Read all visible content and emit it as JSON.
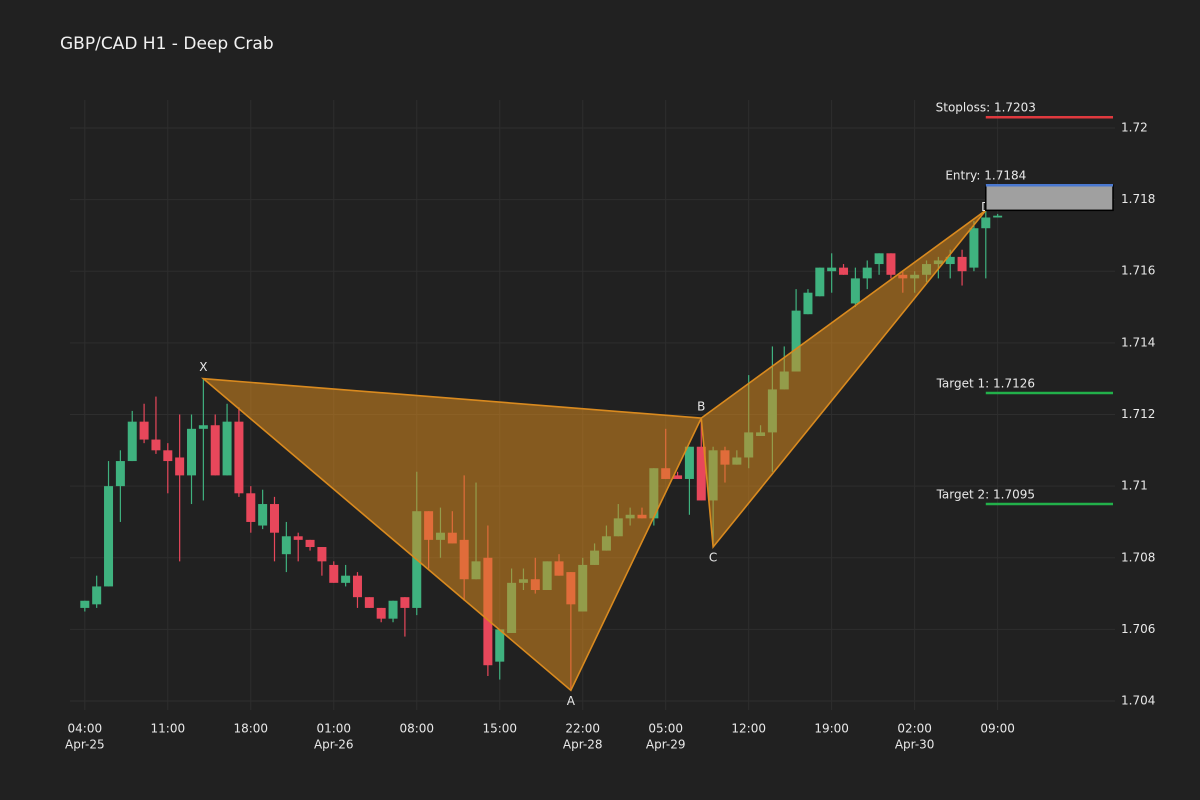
{
  "chart_data": {
    "type": "candlestick",
    "title": "GBP/CAD H1 - Deep Crab",
    "xlim": [
      -1.25,
      86.9
    ],
    "ylim": [
      1.70375,
      1.72078
    ],
    "grid": true,
    "xticks": [
      {
        "value": 0,
        "label": "04:00",
        "date": "Apr-25"
      },
      {
        "value": 7,
        "label": "11:00"
      },
      {
        "value": 14,
        "label": "18:00"
      },
      {
        "value": 21,
        "label": "01:00",
        "date": "Apr-26"
      },
      {
        "value": 28,
        "label": "08:00"
      },
      {
        "value": 35,
        "label": "15:00"
      },
      {
        "value": 42,
        "label": "22:00",
        "date": "Apr-28"
      },
      {
        "value": 49,
        "label": "05:00",
        "date": "Apr-29"
      },
      {
        "value": 56,
        "label": "12:00"
      },
      {
        "value": 63,
        "label": "19:00"
      },
      {
        "value": 70,
        "label": "02:00",
        "date": "Apr-30"
      },
      {
        "value": 77,
        "label": "09:00"
      }
    ],
    "yticks": [
      1.704,
      1.706,
      1.708,
      1.71,
      1.712,
      1.714,
      1.716,
      1.718,
      1.72
    ],
    "colors": {
      "up": "#3fb27f",
      "down": "#e8475b"
    },
    "candles": {
      "open": [
        1.7066,
        1.7067,
        1.7072,
        1.71,
        1.7107,
        1.7118,
        1.7113,
        1.711,
        1.7108,
        1.7103,
        1.7116,
        1.7117,
        1.7103,
        1.7118,
        1.7098,
        1.7089,
        1.7095,
        1.7081,
        1.7086,
        1.7085,
        1.7083,
        1.7078,
        1.7073,
        1.7075,
        1.7069,
        1.7066,
        1.7063,
        1.7069,
        1.7066,
        1.7093,
        1.7085,
        1.7087,
        1.7085,
        1.7074,
        1.708,
        1.7051,
        1.7059,
        1.7073,
        1.7074,
        1.7071,
        1.7079,
        1.7076,
        1.7065,
        1.7078,
        1.7082,
        1.7086,
        1.7091,
        1.7092,
        1.7091,
        1.7105,
        1.7103,
        1.7102,
        1.7111,
        1.7096,
        1.711,
        1.7106,
        1.7108,
        1.7114,
        1.7115,
        1.7127,
        1.7132,
        1.7148,
        1.7153,
        1.716,
        1.7161,
        1.7151,
        1.7158,
        1.7162,
        1.7165,
        1.7159,
        1.7158,
        1.7159,
        1.7162,
        1.7162,
        1.7164,
        1.7161,
        1.7172,
        1.7175
      ],
      "high": [
        1.7068,
        1.7075,
        1.7107,
        1.711,
        1.7121,
        1.7123,
        1.7125,
        1.7112,
        1.712,
        1.712,
        1.713,
        1.712,
        1.7123,
        1.7122,
        1.71,
        1.7099,
        1.7097,
        1.709,
        1.7087,
        1.7085,
        1.7083,
        1.7079,
        1.7078,
        1.7076,
        1.7069,
        1.7066,
        1.7068,
        1.7069,
        1.7104,
        1.7093,
        1.7094,
        1.7093,
        1.7103,
        1.7101,
        1.7089,
        1.706,
        1.7077,
        1.7077,
        1.708,
        1.7079,
        1.7081,
        1.7076,
        1.708,
        1.7084,
        1.7089,
        1.7095,
        1.7094,
        1.7094,
        1.7105,
        1.7116,
        1.7104,
        1.7111,
        1.7119,
        1.7111,
        1.7111,
        1.711,
        1.7131,
        1.7117,
        1.7139,
        1.7139,
        1.7155,
        1.7155,
        1.7161,
        1.7165,
        1.7162,
        1.7161,
        1.7163,
        1.7165,
        1.7165,
        1.716,
        1.716,
        1.7163,
        1.7164,
        1.7166,
        1.7166,
        1.7174,
        1.7178,
        1.7176
      ],
      "low": [
        1.7065,
        1.7066,
        1.7072,
        1.709,
        1.7107,
        1.7112,
        1.7109,
        1.7098,
        1.7079,
        1.7095,
        1.7096,
        1.7103,
        1.7103,
        1.7097,
        1.7087,
        1.7088,
        1.7079,
        1.7076,
        1.7079,
        1.7082,
        1.7075,
        1.7073,
        1.7072,
        1.7066,
        1.7066,
        1.7062,
        1.7062,
        1.7058,
        1.7064,
        1.7077,
        1.708,
        1.7084,
        1.7068,
        1.7074,
        1.7047,
        1.7046,
        1.7059,
        1.7071,
        1.707,
        1.7071,
        1.7075,
        1.7043,
        1.7065,
        1.7078,
        1.7082,
        1.7086,
        1.7089,
        1.7091,
        1.7089,
        1.7102,
        1.7102,
        1.7092,
        1.7096,
        1.7083,
        1.7101,
        1.7106,
        1.7105,
        1.7114,
        1.7104,
        1.7127,
        1.7132,
        1.7148,
        1.7153,
        1.7154,
        1.7159,
        1.715,
        1.7155,
        1.7159,
        1.7158,
        1.7154,
        1.7154,
        1.7157,
        1.7158,
        1.7158,
        1.7156,
        1.716,
        1.7158,
        1.7175
      ],
      "close": [
        1.7068,
        1.7072,
        1.71,
        1.7107,
        1.7118,
        1.7113,
        1.711,
        1.7107,
        1.7103,
        1.7116,
        1.7117,
        1.7103,
        1.7118,
        1.7098,
        1.709,
        1.7095,
        1.7087,
        1.7086,
        1.7085,
        1.7083,
        1.7079,
        1.7073,
        1.7075,
        1.7069,
        1.7066,
        1.7063,
        1.7068,
        1.7066,
        1.7093,
        1.7085,
        1.7087,
        1.7084,
        1.7074,
        1.7079,
        1.705,
        1.706,
        1.7073,
        1.7074,
        1.7071,
        1.7079,
        1.7075,
        1.7067,
        1.7078,
        1.7082,
        1.7086,
        1.7091,
        1.7092,
        1.7091,
        1.7105,
        1.7102,
        1.7102,
        1.7111,
        1.7096,
        1.711,
        1.7106,
        1.7108,
        1.7115,
        1.7115,
        1.7127,
        1.7132,
        1.7149,
        1.7154,
        1.7161,
        1.7161,
        1.7159,
        1.7158,
        1.7161,
        1.7165,
        1.7159,
        1.7158,
        1.7159,
        1.7162,
        1.7163,
        1.7164,
        1.716,
        1.7172,
        1.7175,
        1.71755
      ]
    },
    "pattern": {
      "color": "#d98a1f",
      "points": [
        {
          "label": "X",
          "index": 10,
          "value": 1.713,
          "position": "above"
        },
        {
          "label": "A",
          "index": 41,
          "value": 1.7043,
          "position": "below"
        },
        {
          "label": "B",
          "index": 52,
          "value": 1.7119,
          "position": "above"
        },
        {
          "label": "C",
          "index": 53,
          "value": 1.7083,
          "position": "below"
        },
        {
          "label": "D",
          "index": 76,
          "value": 1.7177,
          "position": "on"
        }
      ]
    },
    "levels": [
      {
        "label": "Stoploss: 1.7203",
        "value": 1.7203,
        "color": "#e0393e"
      },
      {
        "label": "Entry: 1.7184",
        "value": 1.7184,
        "color": "#4a78d0"
      },
      {
        "label": "Target 1: 1.7126",
        "value": 1.7126,
        "color": "#22b04a"
      },
      {
        "label": "Target 2: 1.7095",
        "value": 1.7095,
        "color": "#22b04a"
      }
    ],
    "entry_zone_color": "#a0a0a0"
  }
}
